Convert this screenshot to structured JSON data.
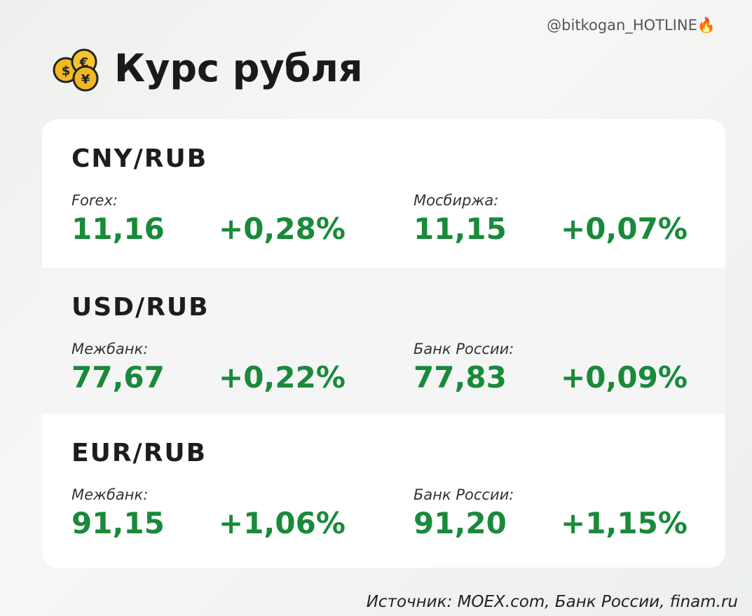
{
  "header": {
    "handle": "@bitkogan_HOTLINE🔥",
    "title": "Курс рубля"
  },
  "sections": [
    {
      "pair": "CNY/RUB",
      "left": {
        "label": "Forex:",
        "value": "11,16",
        "change": "+0,28%"
      },
      "right": {
        "label": "Мосбиржа:",
        "value": "11,15",
        "change": "+0,07%"
      }
    },
    {
      "pair": "USD/RUB",
      "left": {
        "label": "Межбанк:",
        "value": "77,67",
        "change": "+0,22%"
      },
      "right": {
        "label": "Банк России:",
        "value": "77,83",
        "change": "+0,09%"
      }
    },
    {
      "pair": "EUR/RUB",
      "left": {
        "label": "Межбанк:",
        "value": "91,15",
        "change": "+1,06%"
      },
      "right": {
        "label": "Банк России:",
        "value": "91,20",
        "change": "+1,15%"
      }
    }
  ],
  "footer": {
    "source": "Источник: MOEX.com, Банк России, finam.ru"
  }
}
